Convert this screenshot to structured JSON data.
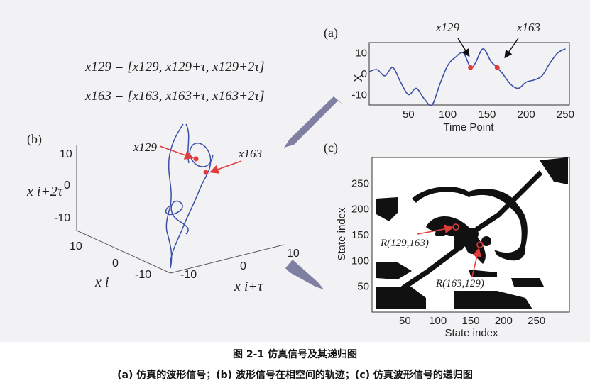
{
  "figure": {
    "panel_a": {
      "label": "(a)",
      "ylabel": "X",
      "xlabel": "Time Point",
      "xticks": [
        "50",
        "100",
        "150",
        "200",
        "250"
      ],
      "yticks": [
        "10",
        "0",
        "-10"
      ],
      "marker_labels": [
        "x129",
        "x163"
      ],
      "line_color": "#3b4fa8",
      "marker_color": "#e03c3c"
    },
    "equations": {
      "eq1": "x129 = [x129, x129+τ, x129+2τ]",
      "eq2": "x163 = [x163, x163+τ, x163+2τ]"
    },
    "panel_b": {
      "label": "(b)",
      "z_label": "x i+2τ",
      "x_label": "x i",
      "y_label": "x i+τ",
      "zticks": [
        "10",
        "0",
        "-10"
      ],
      "xticks": [
        "10",
        "0",
        "-10"
      ],
      "yticks": [
        "-10",
        "0",
        "10"
      ],
      "marker_labels": [
        "x129",
        "x163"
      ]
    },
    "panel_c": {
      "label": "(c)",
      "xlabel": "State index",
      "ylabel": "State index",
      "xticks": [
        "50",
        "100",
        "150",
        "200",
        "250"
      ],
      "yticks": [
        "250",
        "200",
        "150",
        "100",
        "50"
      ],
      "annotations": [
        "R(129,163)",
        "R(163,129)"
      ]
    },
    "arrow_color": "#7f7fa3"
  },
  "caption": {
    "title": "图 2-1  仿真信号及其递归图",
    "subtitle": "(a) 仿真的波形信号；(b) 波形信号在相空间的轨迹；(c) 仿真波形信号的递归图"
  },
  "chart_data": {
    "type": "line",
    "xlabel": "Time Point",
    "ylabel": "X",
    "xlim": [
      0,
      255
    ],
    "ylim": [
      -15,
      15
    ],
    "x": [
      0,
      10,
      20,
      30,
      40,
      50,
      60,
      70,
      80,
      90,
      100,
      110,
      120,
      129,
      135,
      145,
      155,
      163,
      170,
      180,
      190,
      200,
      210,
      220,
      230,
      240,
      250
    ],
    "values": [
      1,
      2,
      -1,
      3,
      -4,
      -10,
      -7,
      -12,
      -15,
      -5,
      4,
      8,
      10,
      3,
      5,
      12,
      6,
      3,
      0,
      -5,
      -7,
      -4,
      -3,
      -1,
      5,
      10,
      12
    ],
    "markers": [
      {
        "x": 129,
        "y": 3
      },
      {
        "x": 163,
        "y": 3
      }
    ]
  }
}
